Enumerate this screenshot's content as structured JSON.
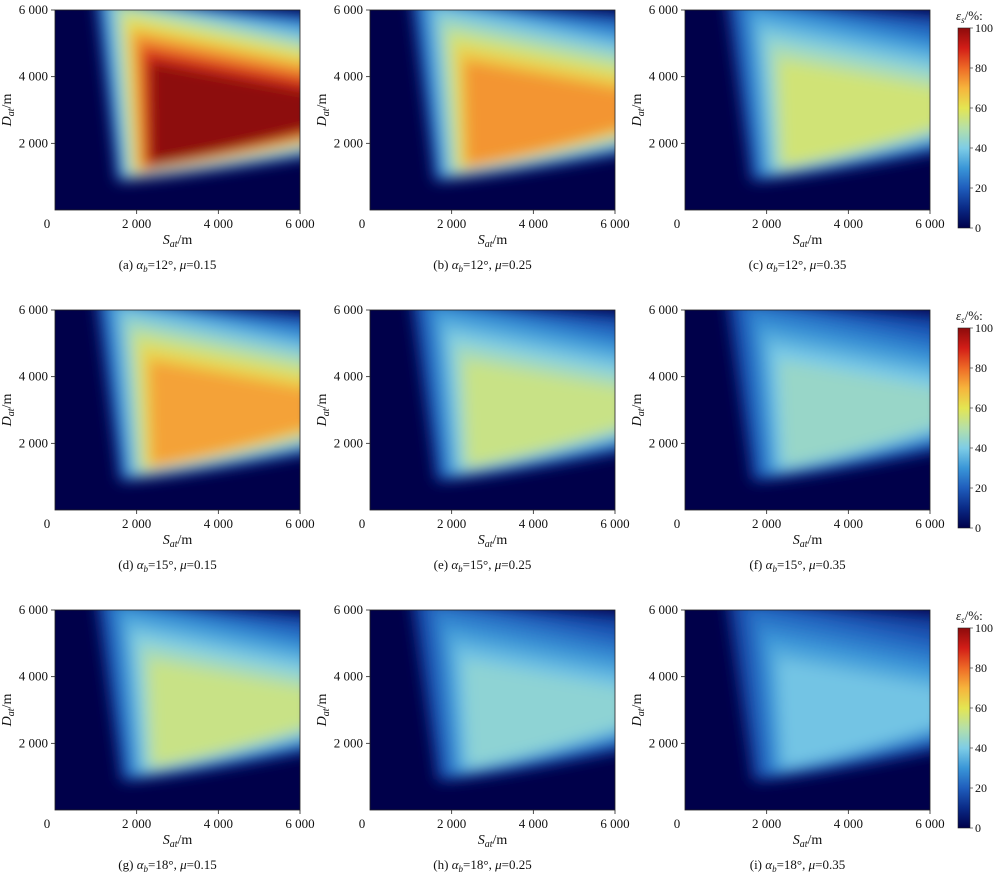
{
  "figure": {
    "panels": [
      {
        "caption": "(a) αb=12°, μ=0.15",
        "alpha": "12°",
        "mu": "0.15",
        "intensity": 1.0
      },
      {
        "caption": "(b) αb=12°, μ=0.25",
        "alpha": "12°",
        "mu": "0.25",
        "intensity": 0.72
      },
      {
        "caption": "(c) αb=12°, μ=0.35",
        "alpha": "12°",
        "mu": "0.35",
        "intensity": 0.52
      },
      {
        "caption": "(d) αb=15°, μ=0.15",
        "alpha": "15°",
        "mu": "0.15",
        "intensity": 0.7
      },
      {
        "caption": "(e) αb=15°, μ=0.25",
        "alpha": "15°",
        "mu": "0.25",
        "intensity": 0.5
      },
      {
        "caption": "(f) αb=15°, μ=0.35",
        "alpha": "15°",
        "mu": "0.35",
        "intensity": 0.4
      },
      {
        "caption": "(g) αb=18°, μ=0.15",
        "alpha": "18°",
        "mu": "0.15",
        "intensity": 0.5
      },
      {
        "caption": "(h) αb=18°, μ=0.25",
        "alpha": "18°",
        "mu": "0.25",
        "intensity": 0.38
      },
      {
        "caption": "(i) αb=18°, μ=0.35",
        "alpha": "18°",
        "mu": "0.35",
        "intensity": 0.33
      }
    ]
  },
  "chart_data": {
    "type": "heatmap",
    "xlabel": "Sat/m",
    "ylabel": "Dat/m",
    "x_ticks": [
      "0",
      "2 000",
      "4 000",
      "6 000"
    ],
    "y_ticks": [
      "2 000",
      "4 000",
      "6 000"
    ],
    "xlim": [
      0,
      6000
    ],
    "ylim": [
      0,
      6000
    ],
    "colorbar": {
      "label": "εs/%:",
      "ticks": [
        "0",
        "20",
        "40",
        "60",
        "80",
        "100"
      ],
      "range": [
        0,
        100
      ],
      "colors": [
        "#00004a",
        "#0a2a86",
        "#1f5dbc",
        "#3a96d8",
        "#7ecde6",
        "#b5e0a8",
        "#e4e552",
        "#f6b43c",
        "#ee6a26",
        "#d21d17",
        "#8d0b0b"
      ]
    },
    "grid": false
  }
}
